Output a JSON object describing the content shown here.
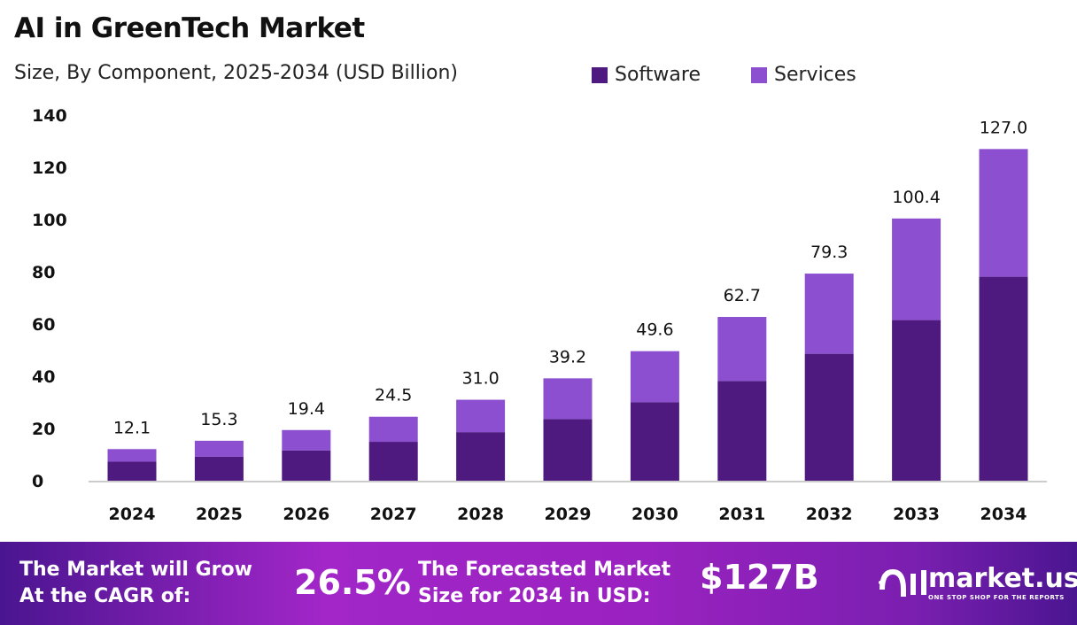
{
  "chart_data": {
    "type": "bar",
    "stacked": true,
    "title": "AI in GreenTech Market",
    "subtitle": "Size, By Component, 2025-2034 (USD Billion)",
    "categories": [
      "2024",
      "2025",
      "2026",
      "2027",
      "2028",
      "2029",
      "2030",
      "2031",
      "2032",
      "2033",
      "2034"
    ],
    "totals": [
      "12.1",
      "15.3",
      "19.4",
      "24.5",
      "31.0",
      "39.2",
      "49.6",
      "62.7",
      "79.3",
      "100.4",
      "127.0"
    ],
    "series": [
      {
        "name": "Software",
        "color": "#4e1a80",
        "values": [
          7.3,
          9.2,
          11.6,
          14.9,
          18.6,
          23.6,
          30.1,
          38.2,
          48.6,
          61.5,
          78.1
        ]
      },
      {
        "name": "Services",
        "color": "#8b4fcf",
        "values": [
          4.8,
          6.1,
          7.8,
          9.6,
          12.4,
          15.6,
          19.5,
          24.5,
          30.7,
          38.9,
          48.9
        ]
      }
    ],
    "yticks": [
      "0",
      "20",
      "40",
      "60",
      "80",
      "100",
      "120",
      "140"
    ],
    "ylim": [
      0,
      140
    ],
    "grid": false,
    "legend": "top-right"
  },
  "footer": {
    "cagr_label": "The Market will Grow At the CAGR of:",
    "cagr_value": "26.5%",
    "forecast_label": "The Forecasted Market Size for 2034 in USD:",
    "forecast_value": "$127B",
    "logo_name": "market.us",
    "logo_tagline": "ONE STOP SHOP FOR THE REPORTS"
  }
}
